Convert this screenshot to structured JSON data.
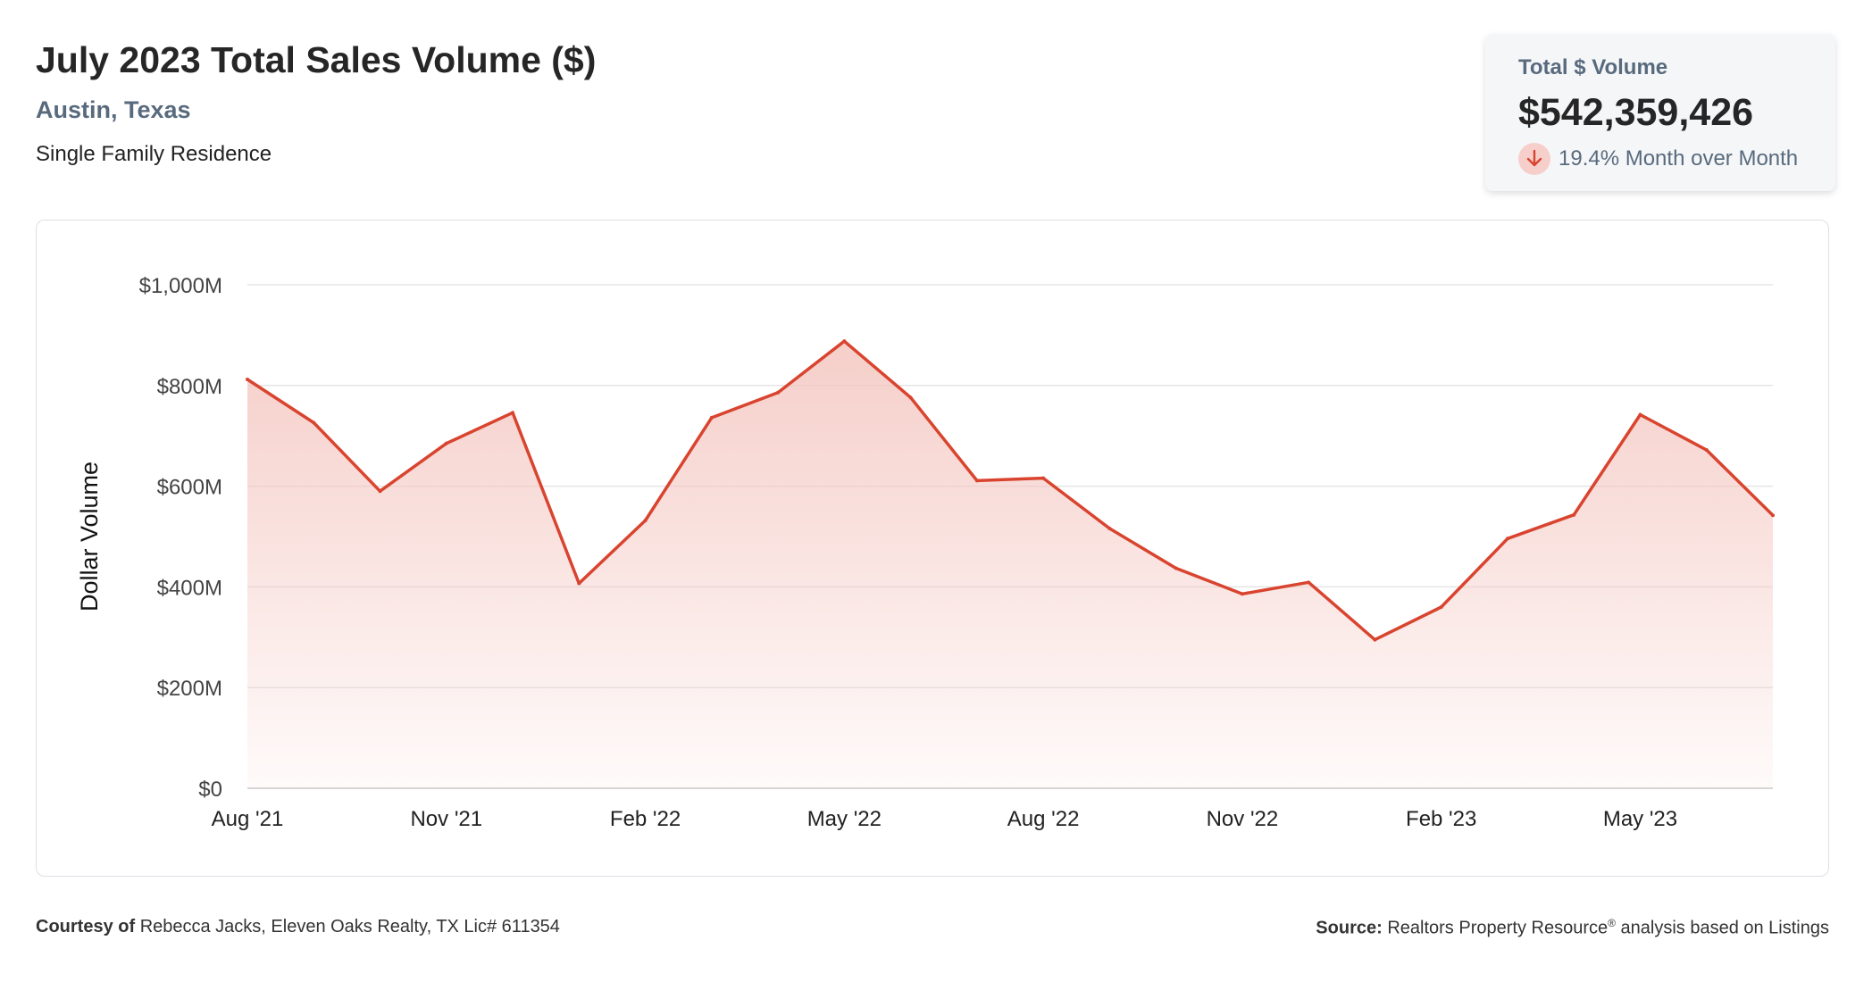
{
  "header": {
    "title": "July 2023 Total Sales Volume ($)",
    "location": "Austin, Texas",
    "property_type": "Single Family Residence"
  },
  "kpi": {
    "label": "Total $ Volume",
    "value": "$542,359,426",
    "change_text": "19.4% Month over Month",
    "direction_icon": "arrow-down-icon",
    "colors": {
      "badge_bg": "#f6cfcb",
      "arrow": "#d9442f"
    }
  },
  "chart_data": {
    "type": "area",
    "ylabel": "Dollar Volume",
    "xlabel": "",
    "ylim": [
      0,
      1000
    ],
    "y_ticks": [
      0,
      200,
      400,
      600,
      800,
      1000
    ],
    "y_tick_labels": [
      "$0",
      "$200M",
      "$400M",
      "$600M",
      "$800M",
      "$1,000M"
    ],
    "x": [
      "Aug '21",
      "Sep '21",
      "Oct '21",
      "Nov '21",
      "Dec '21",
      "Jan '22",
      "Feb '22",
      "Mar '22",
      "Apr '22",
      "May '22",
      "Jun '22",
      "Jul '22",
      "Aug '22",
      "Sep '22",
      "Oct '22",
      "Nov '22",
      "Dec '22",
      "Jan '23",
      "Feb '23",
      "Mar '23",
      "Apr '23",
      "May '23",
      "Jun '23",
      "Jul '23"
    ],
    "x_tick_labels": [
      "Aug '21",
      "Nov '21",
      "Feb '22",
      "May '22",
      "Aug '22",
      "Nov '22",
      "Feb '23",
      "May '23"
    ],
    "series": [
      {
        "values": [
          812,
          726,
          590,
          685,
          746,
          407,
          532,
          736,
          786,
          888,
          776,
          611,
          616,
          516,
          437,
          386,
          409,
          295,
          360,
          496,
          543,
          742,
          672,
          542
        ]
      }
    ],
    "grid": true,
    "colors": {
      "line": "#d9442f",
      "fill": "#f4c6c0",
      "grid": "#e5e5e5"
    }
  },
  "footer": {
    "courtesy_label": "Courtesy of",
    "courtesy_text": "Rebecca Jacks, Eleven Oaks Realty, TX Lic# 611354",
    "source_label": "Source:",
    "source_name": "Realtors Property Resource",
    "source_mark": "®",
    "source_rest": "analysis based on Listings"
  }
}
